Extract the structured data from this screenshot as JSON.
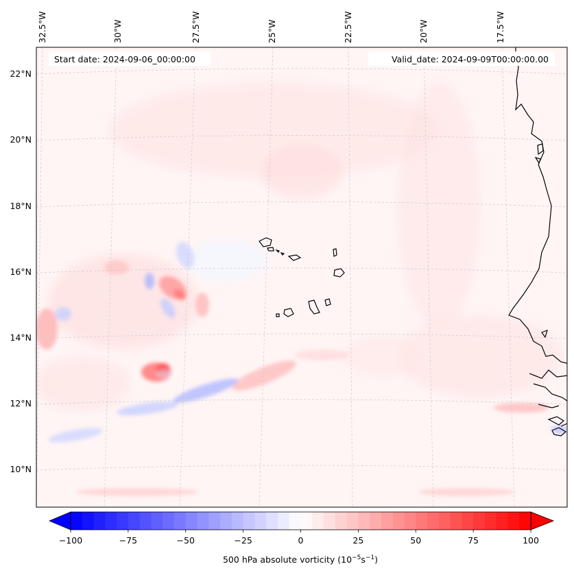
{
  "header": {
    "start_date": "Start date: 2024-09-06_00:00:00",
    "valid_date": "Valid_date: 2024-09-09T00:00:00.00"
  },
  "map": {
    "lon_labels": [
      "32.5°W",
      "30°W",
      "27.5°W",
      "25°W",
      "22.5°W",
      "20°W",
      "17.5°W"
    ],
    "lat_labels": [
      "22°N",
      "20°N",
      "18°N",
      "16°N",
      "14°N",
      "12°N",
      "10°N"
    ]
  },
  "colorbar": {
    "ticks": [
      "−100",
      "−75",
      "−50",
      "−25",
      "0",
      "25",
      "50",
      "75",
      "100"
    ],
    "label_main": "500 hPa absolute vorticity (10",
    "label_exp1": "−5",
    "label_mid": "s",
    "label_exp2": "−1",
    "label_end": ")",
    "range": [
      -100,
      100
    ],
    "step": 5,
    "colormap": "bwr",
    "extend": "both"
  },
  "colors": {
    "coastline": "#000000",
    "gridline": "#c8c8c8",
    "background_field": "#fff5f5"
  }
}
